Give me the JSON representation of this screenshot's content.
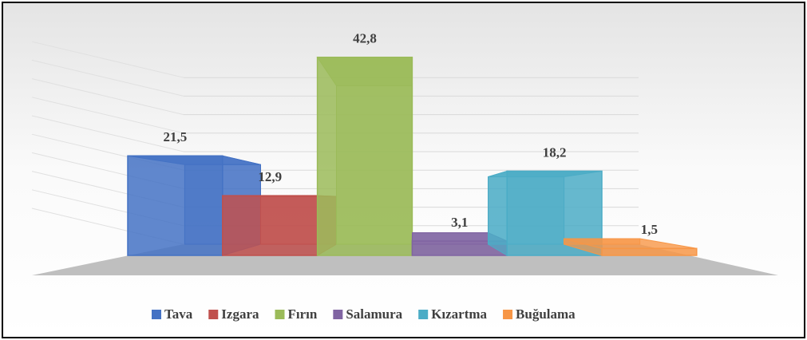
{
  "chart_data": {
    "type": "bar",
    "categories": [
      "Tava",
      "Izgara",
      "Fırın",
      "Salamura",
      "Kızartma",
      "Buğulama"
    ],
    "values": [
      21.5,
      12.9,
      42.8,
      3.1,
      18.2,
      1.5
    ],
    "value_labels": [
      "21,5",
      "12,9",
      "42,8",
      "3,1",
      "18,2",
      "1,5"
    ],
    "colors": [
      "#4472c4",
      "#c0504d",
      "#9bbb59",
      "#8064a2",
      "#4bacc6",
      "#f79646"
    ],
    "ylim": [
      0,
      45
    ],
    "yticks": [
      0,
      5,
      10,
      15,
      20,
      25,
      30,
      35,
      40,
      45
    ],
    "grid": true
  }
}
